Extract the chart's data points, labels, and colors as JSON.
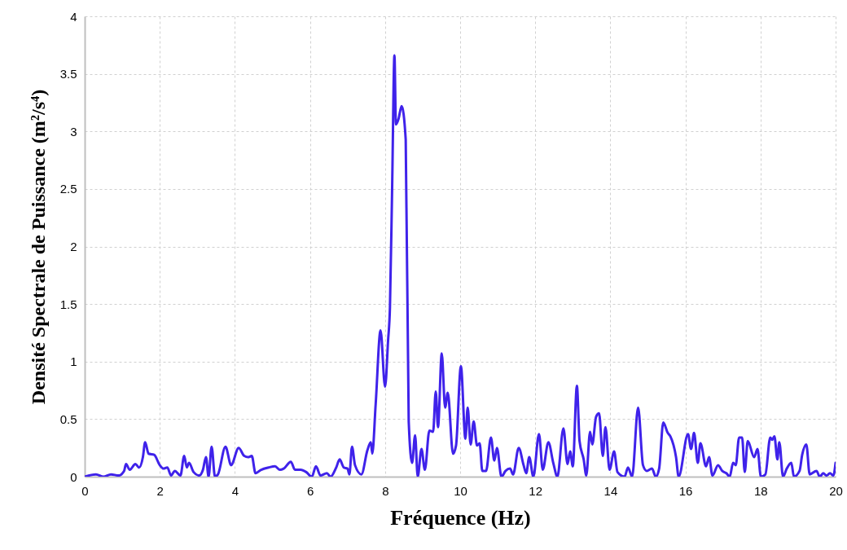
{
  "chart_data": {
    "type": "line",
    "xlabel": "Fréquence (Hz)",
    "ylabel": "Densité Spectrale de Puissance (m²/s⁴)",
    "xlim": [
      0,
      20
    ],
    "xticks": [
      0,
      2,
      4,
      6,
      8,
      10,
      12,
      14,
      16,
      18,
      20
    ],
    "ylim": [
      0,
      4
    ],
    "yticks": [
      0,
      0.5,
      1,
      1.5,
      2,
      2.5,
      3,
      3.5,
      4
    ],
    "grid": true,
    "marker": "none",
    "line_style": "solid",
    "series": [
      {
        "color": "#3f22ea",
        "x": [
          0,
          0.3,
          0.5,
          0.7,
          0.9,
          1.05,
          1.1,
          1.2,
          1.35,
          1.45,
          1.55,
          1.61,
          1.7,
          1.85,
          2.0,
          2.1,
          2.2,
          2.3,
          2.4,
          2.55,
          2.65,
          2.72,
          2.78,
          2.9,
          3.05,
          3.15,
          3.23,
          3.3,
          3.38,
          3.47,
          3.55,
          3.75,
          3.9,
          4.1,
          4.25,
          4.35,
          4.45,
          4.55,
          4.7,
          4.9,
          5.07,
          5.2,
          5.3,
          5.49,
          5.6,
          5.75,
          5.9,
          6.05,
          6.16,
          6.28,
          6.45,
          6.55,
          6.7,
          6.79,
          6.9,
          7.0,
          7.05,
          7.12,
          7.2,
          7.37,
          7.53,
          7.62,
          7.66,
          7.75,
          7.88,
          8.0,
          8.08,
          8.13,
          8.19,
          8.25,
          8.29,
          8.36,
          8.44,
          8.55,
          8.63,
          8.72,
          8.8,
          8.87,
          8.97,
          9.06,
          9.18,
          9.28,
          9.35,
          9.41,
          9.51,
          9.6,
          9.67,
          9.81,
          9.89,
          10.02,
          10.14,
          10.2,
          10.28,
          10.36,
          10.45,
          10.52,
          10.59,
          10.69,
          10.82,
          10.91,
          10.98,
          11.1,
          11.21,
          11.33,
          11.41,
          11.56,
          11.69,
          11.76,
          11.84,
          11.95,
          12.1,
          12.2,
          12.35,
          12.48,
          12.59,
          12.75,
          12.86,
          12.93,
          13.0,
          13.11,
          13.18,
          13.29,
          13.36,
          13.46,
          13.52,
          13.62,
          13.7,
          13.8,
          13.87,
          13.98,
          14.1,
          14.19,
          14.38,
          14.47,
          14.58,
          14.74,
          14.87,
          14.97,
          15.11,
          15.21,
          15.3,
          15.41,
          15.53,
          15.6,
          15.75,
          15.82,
          16.07,
          16.15,
          16.23,
          16.33,
          16.4,
          16.55,
          16.63,
          16.72,
          16.87,
          16.98,
          17.09,
          17.18,
          17.27,
          17.34,
          17.43,
          17.51,
          17.58,
          17.66,
          17.83,
          17.92,
          18.01,
          18.13,
          18.26,
          18.31,
          18.37,
          18.45,
          18.5,
          18.6,
          18.7,
          18.82,
          18.89,
          19.04,
          19.11,
          19.22,
          19.31,
          19.49,
          19.58,
          19.67,
          19.76,
          19.85,
          19.94,
          20.0
        ],
        "values": [
          0,
          0.02,
          0,
          0.02,
          0.01,
          0.05,
          0.11,
          0.06,
          0.11,
          0.08,
          0.17,
          0.3,
          0.2,
          0.19,
          0.1,
          0.07,
          0.08,
          0.01,
          0.05,
          0.01,
          0.18,
          0.08,
          0.12,
          0.04,
          0.01,
          0.06,
          0.17,
          0,
          0.26,
          0,
          0.02,
          0.26,
          0.1,
          0.25,
          0.18,
          0.17,
          0.18,
          0.03,
          0.06,
          0.08,
          0.09,
          0.06,
          0.07,
          0.13,
          0.06,
          0.06,
          0.04,
          0,
          0.09,
          0.01,
          0.03,
          0,
          0.08,
          0.15,
          0.08,
          0.07,
          0.02,
          0.26,
          0.1,
          0.02,
          0.23,
          0.3,
          0.2,
          0.63,
          1.27,
          0.78,
          1.18,
          1.47,
          2.54,
          3.66,
          3.06,
          3.11,
          3.22,
          2.93,
          0.48,
          0.12,
          0.36,
          0,
          0.24,
          0.06,
          0.4,
          0.39,
          0.74,
          0.43,
          1.07,
          0.6,
          0.73,
          0.2,
          0.27,
          0.96,
          0.33,
          0.6,
          0.28,
          0.48,
          0.27,
          0.29,
          0.05,
          0.05,
          0.34,
          0.14,
          0.25,
          0,
          0.05,
          0.07,
          0.02,
          0.25,
          0.1,
          0.03,
          0.17,
          0,
          0.37,
          0.06,
          0.3,
          0.12,
          0,
          0.42,
          0.11,
          0.22,
          0.09,
          0.79,
          0.31,
          0.15,
          0.01,
          0.39,
          0.28,
          0.52,
          0.55,
          0.18,
          0.43,
          0.06,
          0.22,
          0.04,
          0,
          0.08,
          0,
          0.6,
          0.1,
          0.05,
          0.07,
          0,
          0.07,
          0.47,
          0.38,
          0.35,
          0.17,
          0,
          0.37,
          0.24,
          0.38,
          0.12,
          0.29,
          0.09,
          0.17,
          0.01,
          0.1,
          0.05,
          0.03,
          0,
          0.12,
          0.1,
          0.34,
          0.34,
          0.04,
          0.31,
          0.17,
          0.24,
          0,
          0.02,
          0.34,
          0.32,
          0.35,
          0.15,
          0.3,
          0,
          0.07,
          0.12,
          0,
          0.05,
          0.19,
          0.28,
          0.02,
          0.05,
          0,
          0.03,
          0.01,
          0.03,
          0.01,
          0.12
        ]
      }
    ]
  }
}
